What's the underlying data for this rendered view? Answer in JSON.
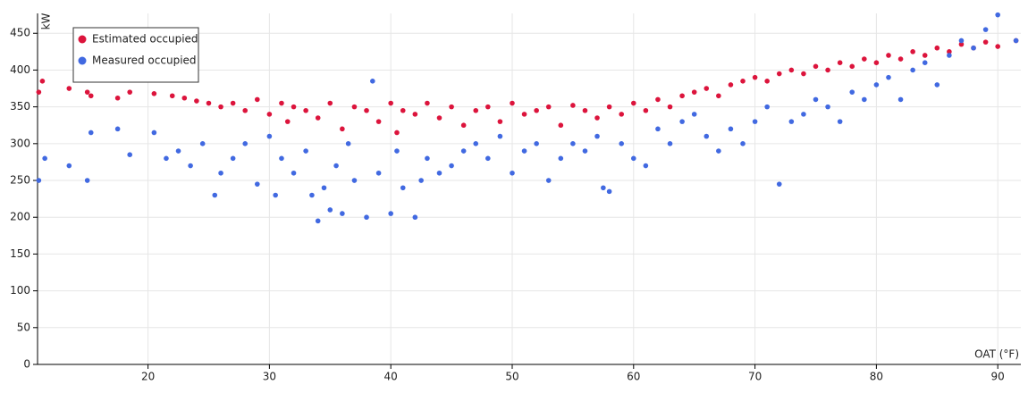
{
  "chart_data": {
    "type": "scatter",
    "x_label": "OAT (°F)",
    "y_label": "kW",
    "xlim": [
      10.9,
      91.9
    ],
    "ylim": [
      0,
      477
    ],
    "xticks": [
      20,
      30,
      40,
      50,
      60,
      70,
      80,
      90
    ],
    "yticks": [
      0,
      50,
      100,
      150,
      200,
      250,
      300,
      350,
      400,
      450
    ],
    "grid": true,
    "legend": "upper left",
    "series": [
      {
        "name": "Estimated occupied",
        "color": "#dc143c",
        "x": [
          11,
          11.3,
          13.5,
          15,
          15.3,
          17.5,
          18.5,
          20.5,
          22,
          23,
          24,
          25,
          26,
          27,
          28,
          29,
          30,
          31,
          31.5,
          32,
          33,
          34,
          35,
          36,
          37,
          38,
          39,
          40,
          40.5,
          41,
          42,
          43,
          44,
          45,
          46,
          47,
          48,
          49,
          50,
          51,
          52,
          53,
          54,
          55,
          56,
          57,
          58,
          59,
          60,
          61,
          62,
          63,
          64,
          65,
          66,
          67,
          68,
          69,
          70,
          71,
          72,
          73,
          74,
          75,
          76,
          77,
          78,
          79,
          80,
          81,
          82,
          83,
          84,
          85,
          86,
          87,
          88,
          89,
          90,
          91.5
        ],
        "values": [
          370,
          385,
          375,
          370,
          365,
          362,
          370,
          368,
          365,
          362,
          358,
          355,
          350,
          355,
          345,
          360,
          340,
          355,
          330,
          350,
          345,
          335,
          355,
          320,
          350,
          345,
          330,
          355,
          315,
          345,
          340,
          355,
          335,
          350,
          325,
          345,
          350,
          330,
          355,
          340,
          345,
          350,
          325,
          352,
          345,
          335,
          350,
          340,
          355,
          345,
          360,
          350,
          365,
          370,
          375,
          365,
          380,
          385,
          390,
          385,
          395,
          400,
          395,
          405,
          400,
          410,
          405,
          415,
          410,
          420,
          415,
          425,
          420,
          430,
          425,
          435,
          430,
          438,
          432,
          440
        ]
      },
      {
        "name": "Measured occupied",
        "color": "#4169e1",
        "x": [
          11,
          11.5,
          13.5,
          15,
          15.3,
          17.5,
          18.5,
          20.5,
          21.5,
          22.5,
          23.5,
          24.5,
          25.5,
          26,
          27,
          28,
          29,
          30,
          30.5,
          31,
          32,
          33,
          33.5,
          34,
          34.5,
          35,
          35.5,
          36,
          36.5,
          37,
          38,
          38.5,
          39,
          40,
          40.5,
          41,
          42,
          42.5,
          43,
          44,
          45,
          46,
          47,
          48,
          49,
          50,
          51,
          52,
          53,
          54,
          55,
          56,
          57,
          57.5,
          58,
          59,
          60,
          61,
          62,
          63,
          64,
          65,
          66,
          67,
          68,
          69,
          70,
          71,
          72,
          73,
          74,
          75,
          76,
          77,
          78,
          79,
          80,
          81,
          82,
          83,
          84,
          85,
          86,
          87,
          88,
          89,
          90,
          91.5
        ],
        "values": [
          250,
          280,
          270,
          250,
          315,
          320,
          285,
          315,
          280,
          290,
          270,
          300,
          230,
          260,
          280,
          300,
          245,
          310,
          230,
          280,
          260,
          290,
          230,
          195,
          240,
          210,
          270,
          205,
          300,
          250,
          200,
          385,
          260,
          205,
          290,
          240,
          200,
          250,
          280,
          260,
          270,
          290,
          300,
          280,
          310,
          260,
          290,
          300,
          250,
          280,
          300,
          290,
          310,
          240,
          235,
          300,
          280,
          270,
          320,
          300,
          330,
          340,
          310,
          290,
          320,
          300,
          330,
          350,
          245,
          330,
          340,
          360,
          350,
          330,
          370,
          360,
          380,
          390,
          360,
          400,
          410,
          380,
          420,
          440,
          430,
          455,
          475,
          440
        ]
      }
    ]
  }
}
